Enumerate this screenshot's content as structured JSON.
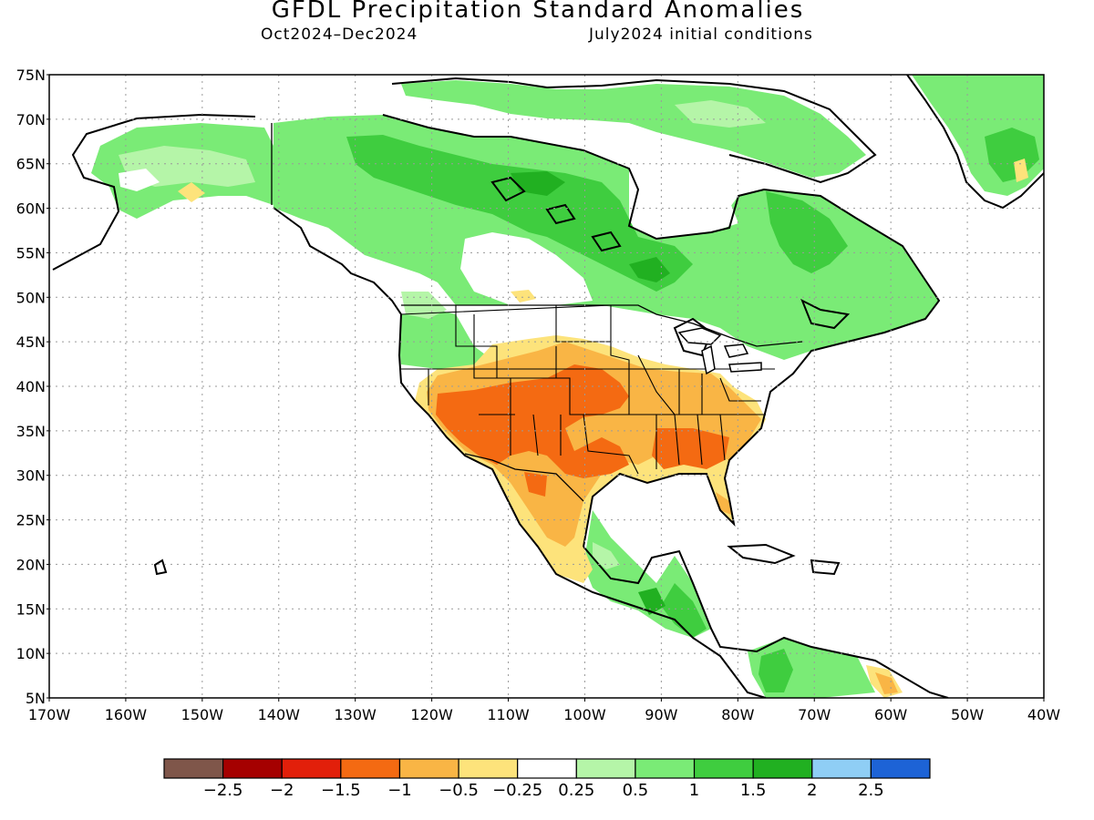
{
  "title": "GFDL Precipitation Standard Anomalies",
  "subtitle_period": "Oct2024–Dec2024",
  "subtitle_init": "July2024 initial conditions",
  "lat_labels": [
    "75N",
    "70N",
    "65N",
    "60N",
    "55N",
    "50N",
    "45N",
    "40N",
    "35N",
    "30N",
    "25N",
    "20N",
    "15N",
    "10N",
    "5N"
  ],
  "lon_labels": [
    "170W",
    "160W",
    "150W",
    "140W",
    "130W",
    "120W",
    "110W",
    "100W",
    "90W",
    "80W",
    "70W",
    "60W",
    "50W",
    "40W"
  ],
  "colorbar": {
    "colors": [
      "#7f564a",
      "#a50000",
      "#e21f0a",
      "#f46a12",
      "#f9b545",
      "#fde37b",
      "#ffffff",
      "#b5f5a8",
      "#7aeb76",
      "#3fcd3f",
      "#21b021",
      "#8fcef5",
      "#1d63d6"
    ],
    "labels": [
      "−2.5",
      "−2",
      "−1.5",
      "−1",
      "−0.5",
      "−0.25",
      "0.25",
      "0.5",
      "1",
      "1.5",
      "2",
      "2.5"
    ]
  }
}
